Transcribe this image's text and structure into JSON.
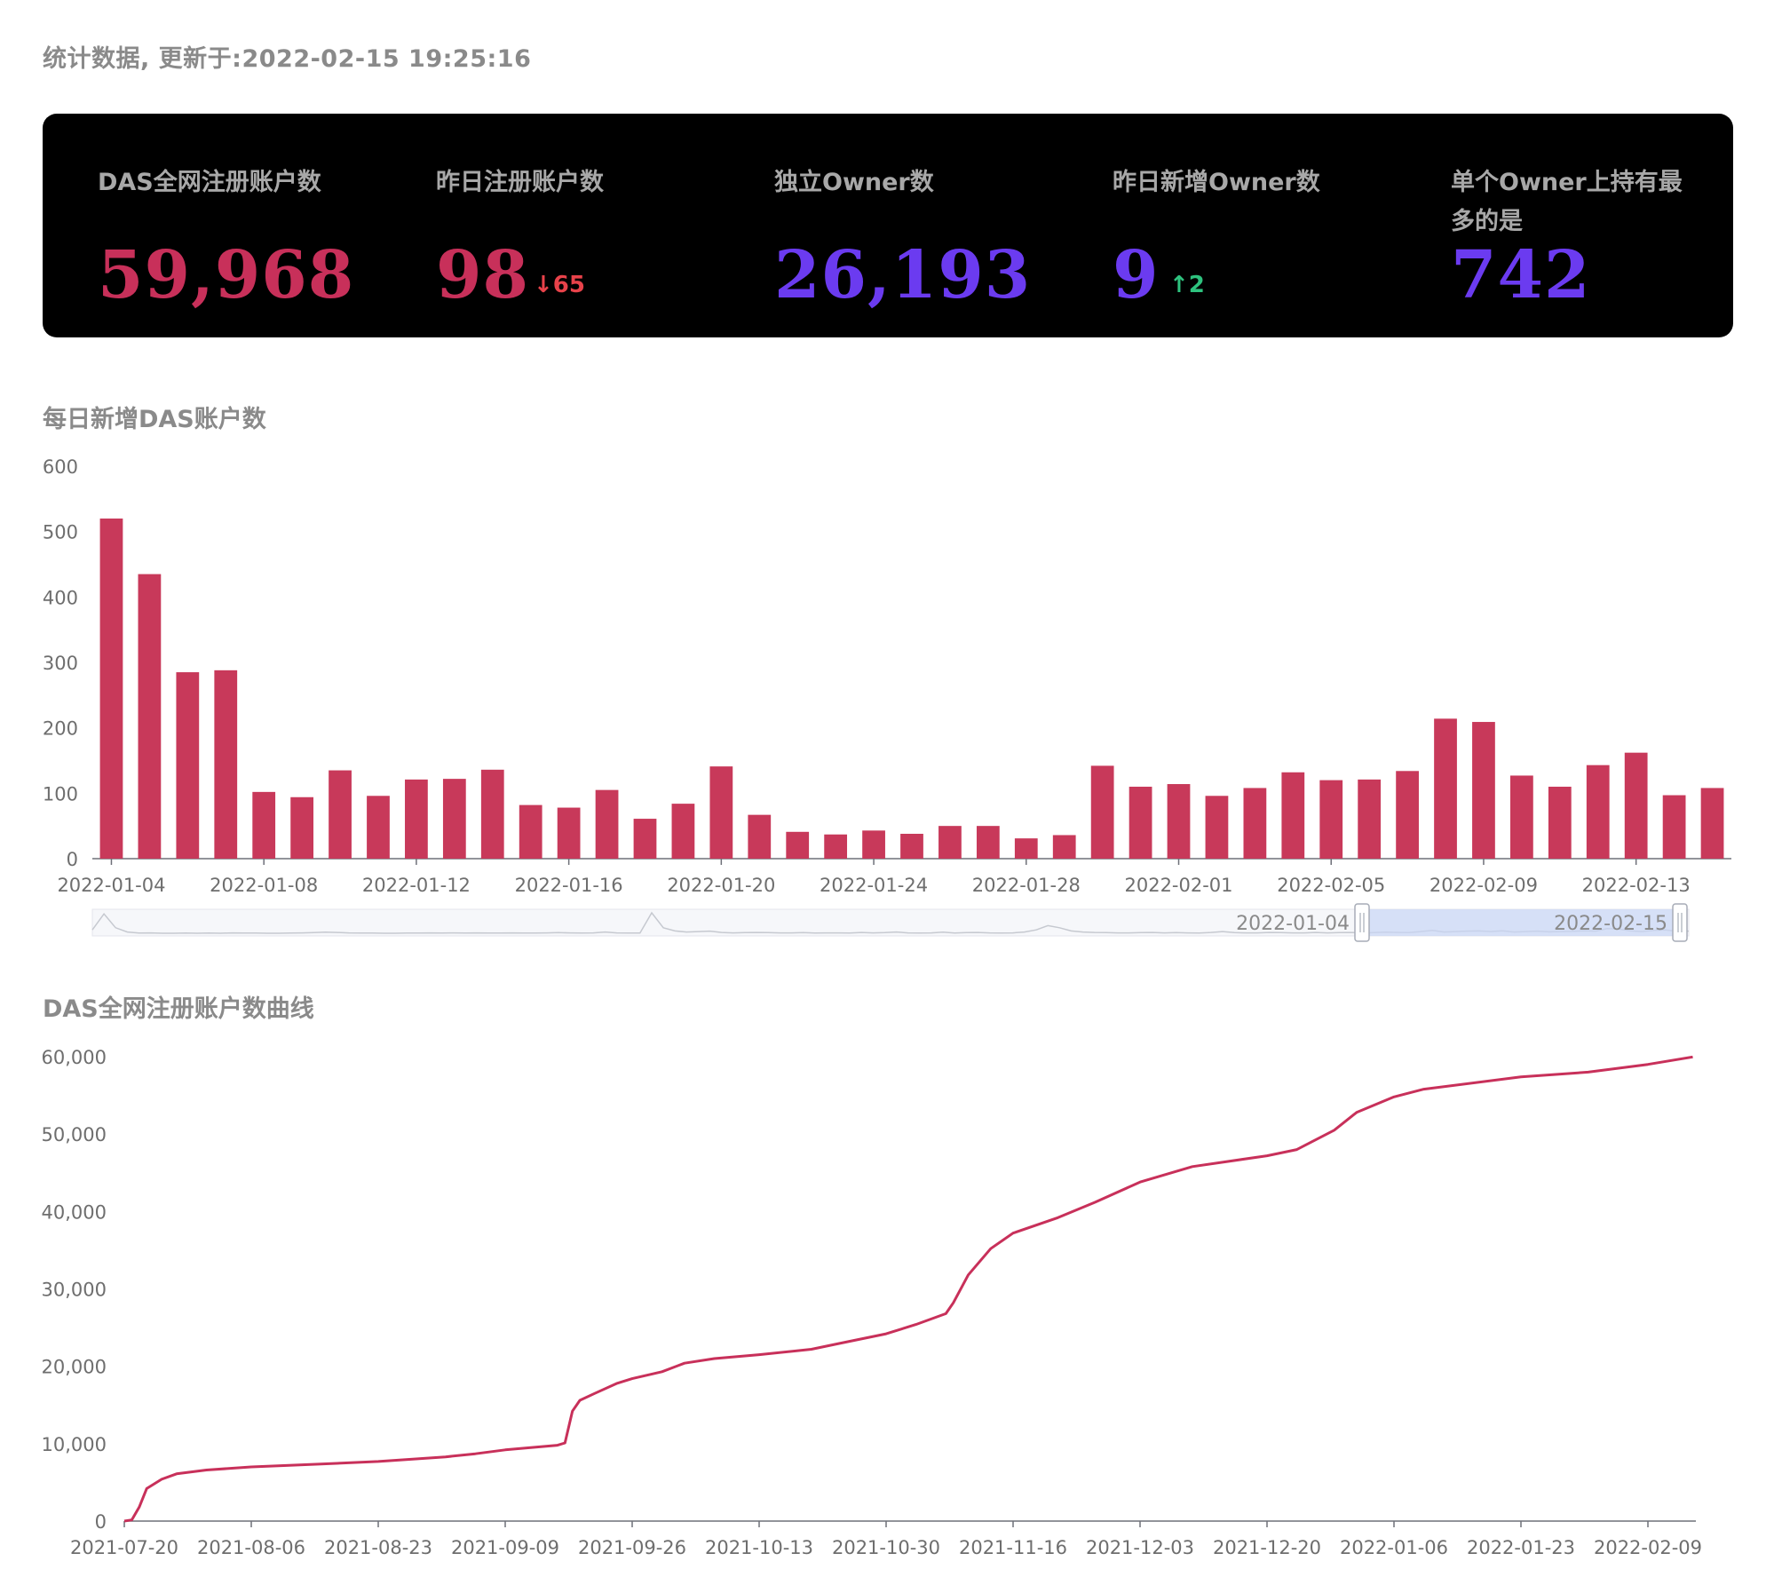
{
  "header": {
    "updated_text": "统计数据, 更新于:2022-02-15 19:25:16"
  },
  "stats": [
    {
      "label": "DAS全网注册账户数",
      "value": "59,968",
      "color": "#c8305a"
    },
    {
      "label": "昨日注册账户数",
      "value": "98",
      "color": "#c8305a",
      "delta": "↓65",
      "delta_color": "#e8424a"
    },
    {
      "label": "独立Owner数",
      "value": "26,193",
      "color": "#6b3bf0"
    },
    {
      "label": "昨日新增Owner数",
      "value": "9",
      "color": "#6b3bf0",
      "delta": "↑2",
      "delta_color": "#2ec27e"
    },
    {
      "label": "单个Owner上持有最多的是",
      "value": "742",
      "color": "#6b3bf0"
    }
  ],
  "charts": {
    "daily_title": "每日新增DAS账户数",
    "cumulative_title": "DAS全网注册账户数曲线"
  },
  "chart_data": [
    {
      "type": "bar",
      "title": "每日新增DAS账户数",
      "color": "#c8395a",
      "ylim": [
        0,
        600
      ],
      "yticks": [
        0,
        100,
        200,
        300,
        400,
        500,
        600
      ],
      "grid": false,
      "x_tick_labels": [
        "2022-01-04",
        "2022-01-08",
        "2022-01-12",
        "2022-01-16",
        "2022-01-20",
        "2022-01-24",
        "2022-01-28",
        "2022-02-01",
        "2022-02-05",
        "2022-02-09",
        "2022-02-13"
      ],
      "categories": [
        "2022-01-04",
        "2022-01-05",
        "2022-01-06",
        "2022-01-07",
        "2022-01-08",
        "2022-01-09",
        "2022-01-10",
        "2022-01-11",
        "2022-01-12",
        "2022-01-13",
        "2022-01-14",
        "2022-01-15",
        "2022-01-16",
        "2022-01-17",
        "2022-01-18",
        "2022-01-19",
        "2022-01-20",
        "2022-01-21",
        "2022-01-22",
        "2022-01-23",
        "2022-01-24",
        "2022-01-25",
        "2022-01-26",
        "2022-01-27",
        "2022-01-28",
        "2022-01-29",
        "2022-01-30",
        "2022-01-31",
        "2022-02-01",
        "2022-02-02",
        "2022-02-03",
        "2022-02-04",
        "2022-02-05",
        "2022-02-06",
        "2022-02-07",
        "2022-02-08",
        "2022-02-09",
        "2022-02-10",
        "2022-02-11",
        "2022-02-12",
        "2022-02-13",
        "2022-02-14",
        "2022-02-15"
      ],
      "values": [
        520,
        435,
        285,
        288,
        102,
        94,
        135,
        96,
        121,
        122,
        136,
        82,
        78,
        105,
        61,
        84,
        141,
        67,
        41,
        37,
        43,
        38,
        50,
        50,
        31,
        36,
        142,
        110,
        114,
        96,
        108,
        132,
        120,
        121,
        134,
        214,
        209,
        127,
        110,
        143,
        162,
        97,
        108
      ],
      "zoom_range": [
        "2022-01-04",
        "2022-02-15"
      ],
      "overview_series": [
        0.2,
        0.95,
        0.3,
        0.1,
        0.05,
        0.06,
        0.04,
        0.04,
        0.05,
        0.04,
        0.05,
        0.04,
        0.06,
        0.05,
        0.05,
        0.04,
        0.04,
        0.05,
        0.06,
        0.07,
        0.09,
        0.08,
        0.06,
        0.05,
        0.05,
        0.04,
        0.04,
        0.05,
        0.05,
        0.06,
        0.05,
        0.06,
        0.05,
        0.06,
        0.05,
        0.05,
        0.06,
        0.05,
        0.05,
        0.06,
        0.07,
        0.06,
        0.05,
        0.06,
        0.1,
        0.06,
        0.05,
        0.05,
        1.0,
        0.3,
        0.15,
        0.1,
        0.12,
        0.14,
        0.08,
        0.06,
        0.07,
        0.08,
        0.07,
        0.06,
        0.06,
        0.07,
        0.05,
        0.06,
        0.06,
        0.05,
        0.08,
        0.06,
        0.07,
        0.1,
        0.06,
        0.05,
        0.06,
        0.09,
        0.05,
        0.07,
        0.08,
        0.06,
        0.05,
        0.06,
        0.1,
        0.2,
        0.4,
        0.3,
        0.15,
        0.1,
        0.08,
        0.07,
        0.06,
        0.06,
        0.07,
        0.08,
        0.06,
        0.07,
        0.06,
        0.05,
        0.08,
        0.12,
        0.07,
        0.06,
        0.06,
        0.08,
        0.07,
        0.06,
        0.06,
        0.08,
        0.06,
        0.07,
        0.08,
        0.06,
        0.07,
        0.09,
        0.08,
        0.07,
        0.12,
        0.18,
        0.1,
        0.12,
        0.14,
        0.15,
        0.12,
        0.16,
        0.1,
        0.12,
        0.14,
        0.11,
        0.12,
        0.13,
        0.16,
        0.14,
        0.26,
        0.24,
        0.15,
        0.12,
        0.18,
        0.2,
        0.13,
        0.14
      ]
    },
    {
      "type": "line",
      "title": "DAS全网注册账户数曲线",
      "color": "#c8305a",
      "ylim": [
        0,
        60000
      ],
      "yticks": [
        0,
        10000,
        20000,
        30000,
        40000,
        50000,
        60000
      ],
      "ytick_labels": [
        "0",
        "10,000",
        "20,000",
        "30,000",
        "40,000",
        "50,000",
        "60,000"
      ],
      "xlim": [
        "2021-07-20",
        "2022-02-15"
      ],
      "x_tick_labels": [
        "2021-07-20",
        "2021-08-06",
        "2021-08-23",
        "2021-09-09",
        "2021-09-26",
        "2021-10-13",
        "2021-10-30",
        "2021-11-16",
        "2021-12-03",
        "2021-12-20",
        "2022-01-06",
        "2022-01-23",
        "2022-02-09"
      ],
      "grid": false,
      "points": [
        [
          "2021-07-20",
          0
        ],
        [
          "2021-07-21",
          150
        ],
        [
          "2021-07-22",
          1800
        ],
        [
          "2021-07-23",
          4200
        ],
        [
          "2021-07-25",
          5400
        ],
        [
          "2021-07-27",
          6100
        ],
        [
          "2021-07-31",
          6600
        ],
        [
          "2021-08-06",
          7000
        ],
        [
          "2021-08-15",
          7350
        ],
        [
          "2021-08-23",
          7700
        ],
        [
          "2021-09-01",
          8300
        ],
        [
          "2021-09-05",
          8700
        ],
        [
          "2021-09-09",
          9200
        ],
        [
          "2021-09-16",
          9800
        ],
        [
          "2021-09-17",
          10100
        ],
        [
          "2021-09-18",
          14200
        ],
        [
          "2021-09-19",
          15600
        ],
        [
          "2021-09-21",
          16500
        ],
        [
          "2021-09-24",
          17800
        ],
        [
          "2021-09-26",
          18400
        ],
        [
          "2021-09-30",
          19300
        ],
        [
          "2021-10-03",
          20400
        ],
        [
          "2021-10-07",
          21000
        ],
        [
          "2021-10-13",
          21500
        ],
        [
          "2021-10-20",
          22200
        ],
        [
          "2021-10-24",
          23000
        ],
        [
          "2021-10-30",
          24200
        ],
        [
          "2021-11-03",
          25400
        ],
        [
          "2021-11-07",
          26800
        ],
        [
          "2021-11-08",
          28200
        ],
        [
          "2021-11-10",
          31800
        ],
        [
          "2021-11-13",
          35200
        ],
        [
          "2021-11-16",
          37200
        ],
        [
          "2021-11-22",
          39200
        ],
        [
          "2021-11-27",
          41200
        ],
        [
          "2021-12-03",
          43800
        ],
        [
          "2021-12-10",
          45800
        ],
        [
          "2021-12-20",
          47200
        ],
        [
          "2021-12-24",
          48000
        ],
        [
          "2021-12-29",
          50500
        ],
        [
          "2022-01-01",
          52800
        ],
        [
          "2022-01-06",
          54800
        ],
        [
          "2022-01-10",
          55800
        ],
        [
          "2022-01-23",
          57400
        ],
        [
          "2022-02-01",
          58000
        ],
        [
          "2022-02-09",
          59000
        ],
        [
          "2022-02-15",
          59968
        ]
      ]
    }
  ]
}
